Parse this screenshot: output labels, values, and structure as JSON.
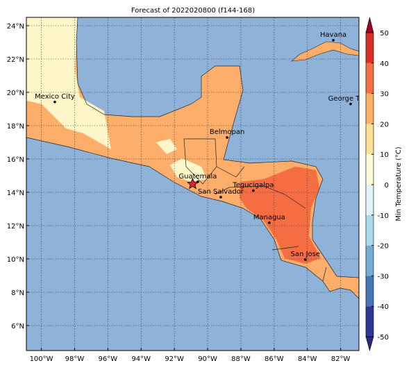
{
  "title": "Forecast of 2022020800 (f144-168)",
  "map": {
    "lonlim": [
      -100.9,
      -80.9
    ],
    "latlim": [
      4.5,
      24.5
    ],
    "xticks": [
      {
        "value": -100,
        "label": "100°W"
      },
      {
        "value": -98,
        "label": "98°W"
      },
      {
        "value": -96,
        "label": "96°W"
      },
      {
        "value": -94,
        "label": "94°W"
      },
      {
        "value": -92,
        "label": "92°W"
      },
      {
        "value": -90,
        "label": "90°W"
      },
      {
        "value": -88,
        "label": "88°W"
      },
      {
        "value": -86,
        "label": "86°W"
      },
      {
        "value": -84,
        "label": "84°W"
      },
      {
        "value": -82,
        "label": "82°W"
      }
    ],
    "yticks": [
      {
        "value": 6,
        "label": "6°N"
      },
      {
        "value": 8,
        "label": "8°N"
      },
      {
        "value": 10,
        "label": "10°N"
      },
      {
        "value": 12,
        "label": "12°N"
      },
      {
        "value": 14,
        "label": "14°N"
      },
      {
        "value": 16,
        "label": "16°N"
      },
      {
        "value": 18,
        "label": "18°N"
      },
      {
        "value": 20,
        "label": "20°N"
      },
      {
        "value": 22,
        "label": "22°N"
      },
      {
        "value": 24,
        "label": "24°N"
      }
    ],
    "cities": [
      {
        "name": "Havana",
        "lon": -82.44,
        "lat": 23.13
      },
      {
        "name": "Mexico City",
        "lon": -99.19,
        "lat": 19.42
      },
      {
        "name": "George Town",
        "lon": -81.4,
        "lat": 19.3
      },
      {
        "name": "Belmopan",
        "lon": -88.83,
        "lat": 17.29
      },
      {
        "name": "Guatemala",
        "lon": -90.59,
        "lat": 14.63
      },
      {
        "name": "San Salvador",
        "lon": -89.21,
        "lat": 13.71
      },
      {
        "name": "Tegucigalpa",
        "lon": -87.25,
        "lat": 14.1
      },
      {
        "name": "Managua",
        "lon": -86.29,
        "lat": 12.17
      },
      {
        "name": "San Jose",
        "lon": -84.12,
        "lat": 9.96
      }
    ],
    "star": {
      "lon": -90.9,
      "lat": 14.5,
      "color": "#e8231f"
    }
  },
  "colorbar": {
    "label": "Min Temperature (°C)",
    "ticks": [
      -50,
      -40,
      -30,
      -20,
      -10,
      0,
      10,
      20,
      30,
      40,
      50
    ],
    "colors": [
      "#313695",
      "#4575b4",
      "#74add1",
      "#abd9e9",
      "#e0f3f8",
      "#fffbd8",
      "#fee090",
      "#fdae61",
      "#f46d43",
      "#d73027"
    ],
    "under_color": "#262b80",
    "over_color": "#a50026"
  }
}
